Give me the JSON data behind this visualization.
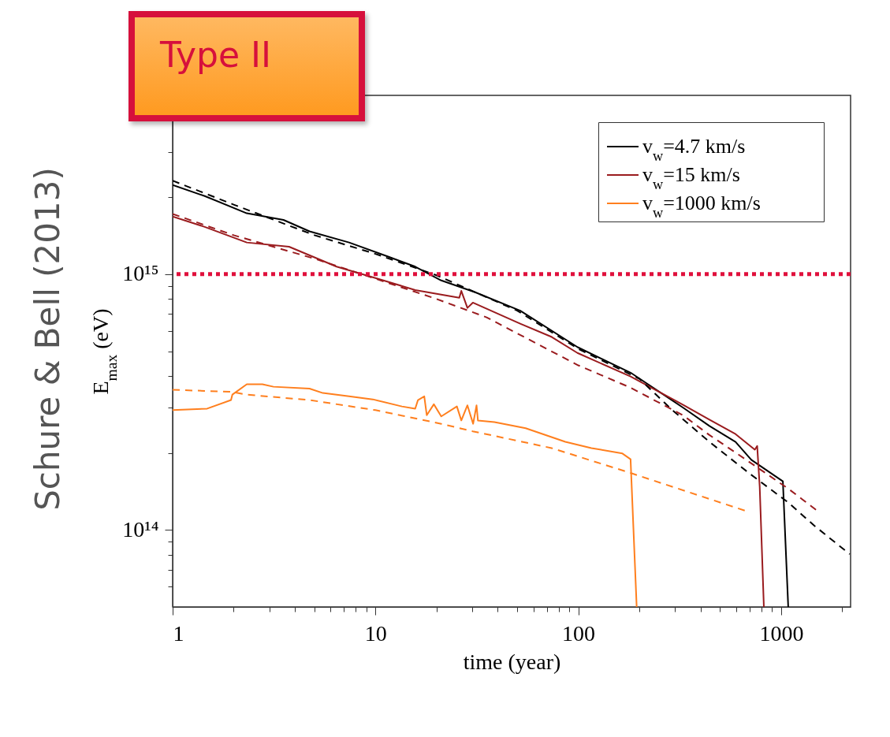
{
  "chart_data": {
    "type": "line",
    "xlabel": "time (year)",
    "ylabel": "E$_{max}$ (eV)",
    "log": "xy",
    "grid": false,
    "legend": "top right",
    "xlim": [
      1,
      2200
    ],
    "ylim": [
      50000000000000.0,
      5000000000000000.0
    ],
    "xticks": [
      1,
      {
        "value": 2,
        "label": null
      },
      {
        "value": 3,
        "label": null
      },
      {
        "value": 4,
        "label": null
      },
      {
        "value": 5,
        "label": null
      },
      {
        "value": 6,
        "label": null
      },
      {
        "value": 7,
        "label": null
      },
      {
        "value": 8,
        "label": null
      },
      {
        "value": 9,
        "label": null
      },
      10,
      {
        "value": 20,
        "label": null
      },
      {
        "value": 30,
        "label": null
      },
      {
        "value": 40,
        "label": null
      },
      {
        "value": 50,
        "label": null
      },
      {
        "value": 60,
        "label": null
      },
      {
        "value": 70,
        "label": null
      },
      {
        "value": 80,
        "label": null
      },
      {
        "value": 90,
        "label": null
      },
      100,
      {
        "value": 200,
        "label": null
      },
      {
        "value": 300,
        "label": null
      },
      {
        "value": 400,
        "label": null
      },
      {
        "value": 500,
        "label": null
      },
      {
        "value": 600,
        "label": null
      },
      {
        "value": 700,
        "label": null
      },
      {
        "value": 800,
        "label": null
      },
      {
        "value": 900,
        "label": null
      },
      1000,
      {
        "value": 2000,
        "label": null
      }
    ],
    "yticks": [
      {
        "value": 60000000000000.0,
        "label": null
      },
      {
        "value": 70000000000000.0,
        "label": null
      },
      {
        "value": 80000000000000.0,
        "label": null
      },
      {
        "value": 90000000000000.0,
        "label": null
      },
      {
        "value": 100000000000000.0,
        "label": "10¹⁴"
      },
      {
        "value": 200000000000000.0,
        "label": null
      },
      {
        "value": 300000000000000.0,
        "label": null
      },
      {
        "value": 400000000000000.0,
        "label": null
      },
      {
        "value": 500000000000000.0,
        "label": null
      },
      {
        "value": 600000000000000.0,
        "label": null
      },
      {
        "value": 700000000000000.0,
        "label": null
      },
      {
        "value": 800000000000000.0,
        "label": null
      },
      {
        "value": 900000000000000.0,
        "label": null
      },
      {
        "value": 1000000000000000.0,
        "label": "10¹⁵"
      },
      {
        "value": 2000000000000000.0,
        "label": null
      },
      {
        "value": 3000000000000000.0,
        "label": null
      },
      {
        "value": 4000000000000000.0,
        "label": null
      }
    ],
    "ref_lines": [
      {
        "axis": "y",
        "value": 1000000000000000.0,
        "color": "#e0103c",
        "line_style": "dotted"
      }
    ],
    "annotations": [
      "Type II",
      "Schure & Bell (2013)"
    ],
    "series": [
      {
        "name": "v$_{w}$=4.7 km/s",
        "color": "#000000",
        "line_style": "solid",
        "x": [
          1,
          1.44,
          2.32,
          3.52,
          4.73,
          7.41,
          11.6,
          15.7,
          21.1,
          31,
          51.7,
          99.3,
          181,
          330,
          443,
          596,
          713,
          1020,
          1084
        ],
        "values": [
          2230000000000000.0,
          2020000000000000.0,
          1730000000000000.0,
          1630000000000000.0,
          1470000000000000.0,
          1330000000000000.0,
          1170000000000000.0,
          1070000000000000.0,
          945000000000000.0,
          850000000000000.0,
          720000000000000.0,
          518000000000000.0,
          412000000000000.0,
          300000000000000.0,
          255000000000000.0,
          221000000000000.0,
          188000000000000.0,
          155000000000000.0,
          50000000000000.0
        ]
      },
      {
        "name": "v$_{w}$=15 km/s",
        "color": "#9a1b1e",
        "line_style": "solid",
        "x": [
          1,
          1.44,
          2.32,
          3.75,
          6.43,
          10,
          15.7,
          25.9,
          26.5,
          28.4,
          30.2,
          51.7,
          74,
          99,
          181,
          330,
          443,
          596,
          742,
          762,
          784,
          822
        ],
        "values": [
          1680000000000000.0,
          1530000000000000.0,
          1330000000000000.0,
          1280000000000000.0,
          1070000000000000.0,
          966000000000000.0,
          867000000000000.0,
          809000000000000.0,
          860000000000000.0,
          738000000000000.0,
          774000000000000.0,
          640000000000000.0,
          568000000000000.0,
          492000000000000.0,
          398000000000000.0,
          308000000000000.0,
          270000000000000.0,
          237000000000000.0,
          206000000000000.0,
          213000000000000.0,
          148000000000000.0,
          50000000000000.0
        ]
      },
      {
        "name": "v$_{w}$=1000 km/s",
        "color": "#ff7f1e",
        "line_style": "solid",
        "x": [
          1,
          1.48,
          1.94,
          1.97,
          2.32,
          2.77,
          3.14,
          4.73,
          5.5,
          7.41,
          9.7,
          13.5,
          15.7,
          16.2,
          17.4,
          17.9,
          19.4,
          21.1,
          25.2,
          26.5,
          28.4,
          30.3,
          31.5,
          32,
          38.6,
          55,
          86.3,
          116,
          165,
          181,
          194
        ],
        "values": [
          294000000000000.0,
          298000000000000.0,
          322000000000000.0,
          338000000000000.0,
          371000000000000.0,
          371000000000000.0,
          363000000000000.0,
          357000000000000.0,
          343000000000000.0,
          333000000000000.0,
          324000000000000.0,
          304000000000000.0,
          298000000000000.0,
          322000000000000.0,
          333000000000000.0,
          281000000000000.0,
          310000000000000.0,
          278000000000000.0,
          304000000000000.0,
          268000000000000.0,
          307000000000000.0,
          260000000000000.0,
          307000000000000.0,
          268000000000000.0,
          264000000000000.0,
          250000000000000.0,
          221000000000000.0,
          209000000000000.0,
          199000000000000.0,
          189000000000000.0,
          50000000000000.0
        ]
      },
      {
        "color": "#000000",
        "line_style": "dashed",
        "x": [
          1,
          2,
          5,
          10,
          20,
          50,
          100,
          200,
          291,
          443,
          693,
          1084,
          1455,
          2180
        ],
        "values": [
          2320000000000000.0,
          1870000000000000.0,
          1420000000000000.0,
          1200000000000000.0,
          990000000000000.0,
          720000000000000.0,
          510000000000000.0,
          390000000000000.0,
          294000000000000.0,
          221000000000000.0,
          167000000000000.0,
          128000000000000.0,
          104000000000000.0,
          80400000000000.0
        ]
      },
      {
        "color": "#9a1b1e",
        "line_style": "dashed",
        "x": [
          1,
          2,
          5,
          10,
          20,
          35.3,
          100,
          181,
          330,
          443,
          600,
          1084,
          1505
        ],
        "values": [
          1720000000000000.0,
          1420000000000000.0,
          1150000000000000.0,
          960000000000000.0,
          800000000000000.0,
          678000000000000.0,
          440000000000000.0,
          360000000000000.0,
          280000000000000.0,
          235000000000000.0,
          200000000000000.0,
          145000000000000.0,
          119000000000000.0
        ]
      },
      {
        "color": "#ff7f1e",
        "line_style": "dashed",
        "x": [
          1,
          1.94,
          2.32,
          4.73,
          10,
          21.1,
          30.2,
          51.7,
          73.8,
          181,
          663
        ],
        "values": [
          353000000000000.0,
          347000000000000.0,
          338000000000000.0,
          322000000000000.0,
          294000000000000.0,
          260000000000000.0,
          243000000000000.0,
          222000000000000.0,
          209000000000000.0,
          167000000000000.0,
          119000000000000.0
        ]
      }
    ]
  }
}
